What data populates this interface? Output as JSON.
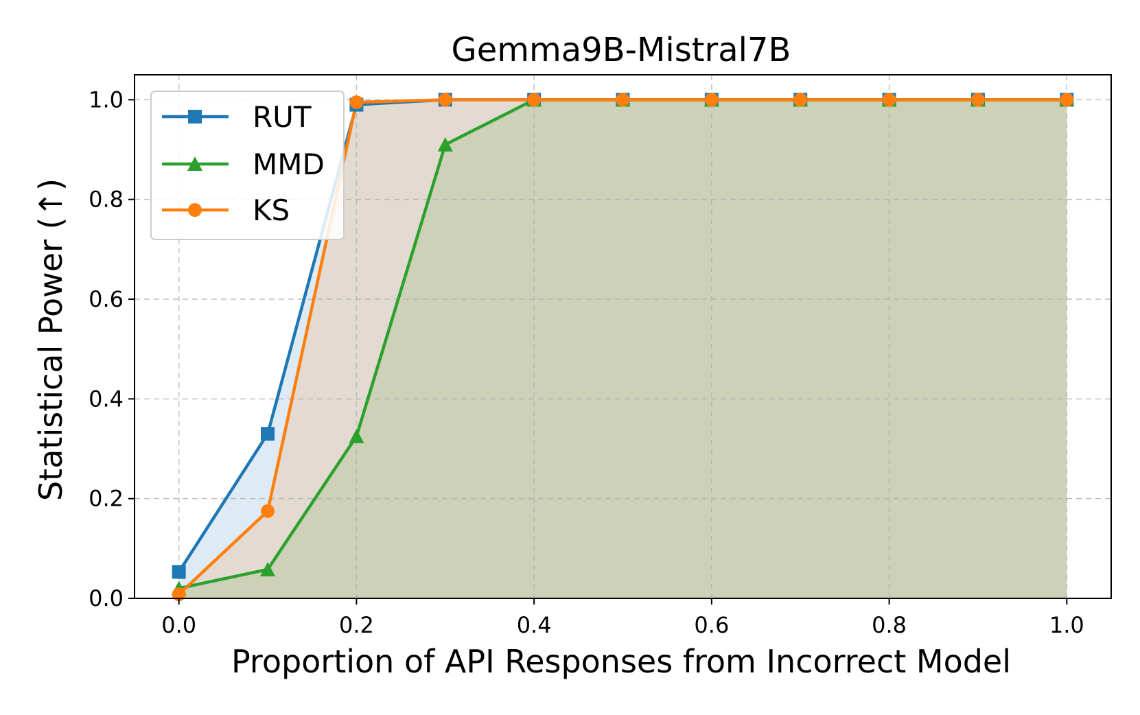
{
  "chart_data": {
    "type": "line",
    "title": "Gemma9B-Mistral7B",
    "xlabel": "Proportion of API Responses from Incorrect Model",
    "ylabel": "Statistical Power (↑)",
    "x": [
      0.0,
      0.1,
      0.2,
      0.3,
      0.4,
      0.5,
      0.6,
      0.7,
      0.8,
      0.9,
      1.0
    ],
    "xlim": [
      -0.05,
      1.05
    ],
    "ylim": [
      0.0,
      1.05
    ],
    "xticks": [
      "0.0",
      "0.2",
      "0.4",
      "0.6",
      "0.8",
      "1.0"
    ],
    "yticks": [
      "0.0",
      "0.2",
      "0.4",
      "0.6",
      "0.8",
      "1.0"
    ],
    "grid": true,
    "legend_position": "upper-left",
    "series": [
      {
        "name": "RUT",
        "marker": "square",
        "color": "#1f77b4",
        "values": [
          0.053,
          0.33,
          0.99,
          1.0,
          1.0,
          1.0,
          1.0,
          1.0,
          1.0,
          1.0,
          1.0
        ]
      },
      {
        "name": "MMD",
        "marker": "triangle",
        "color": "#2ca02c",
        "values": [
          0.02,
          0.058,
          0.325,
          0.91,
          1.0,
          1.0,
          1.0,
          1.0,
          1.0,
          1.0,
          1.0
        ]
      },
      {
        "name": "KS",
        "marker": "circle",
        "color": "#ff7f0e",
        "values": [
          0.008,
          0.175,
          0.995,
          1.0,
          1.0,
          1.0,
          1.0,
          1.0,
          1.0,
          1.0,
          1.0
        ]
      }
    ]
  }
}
